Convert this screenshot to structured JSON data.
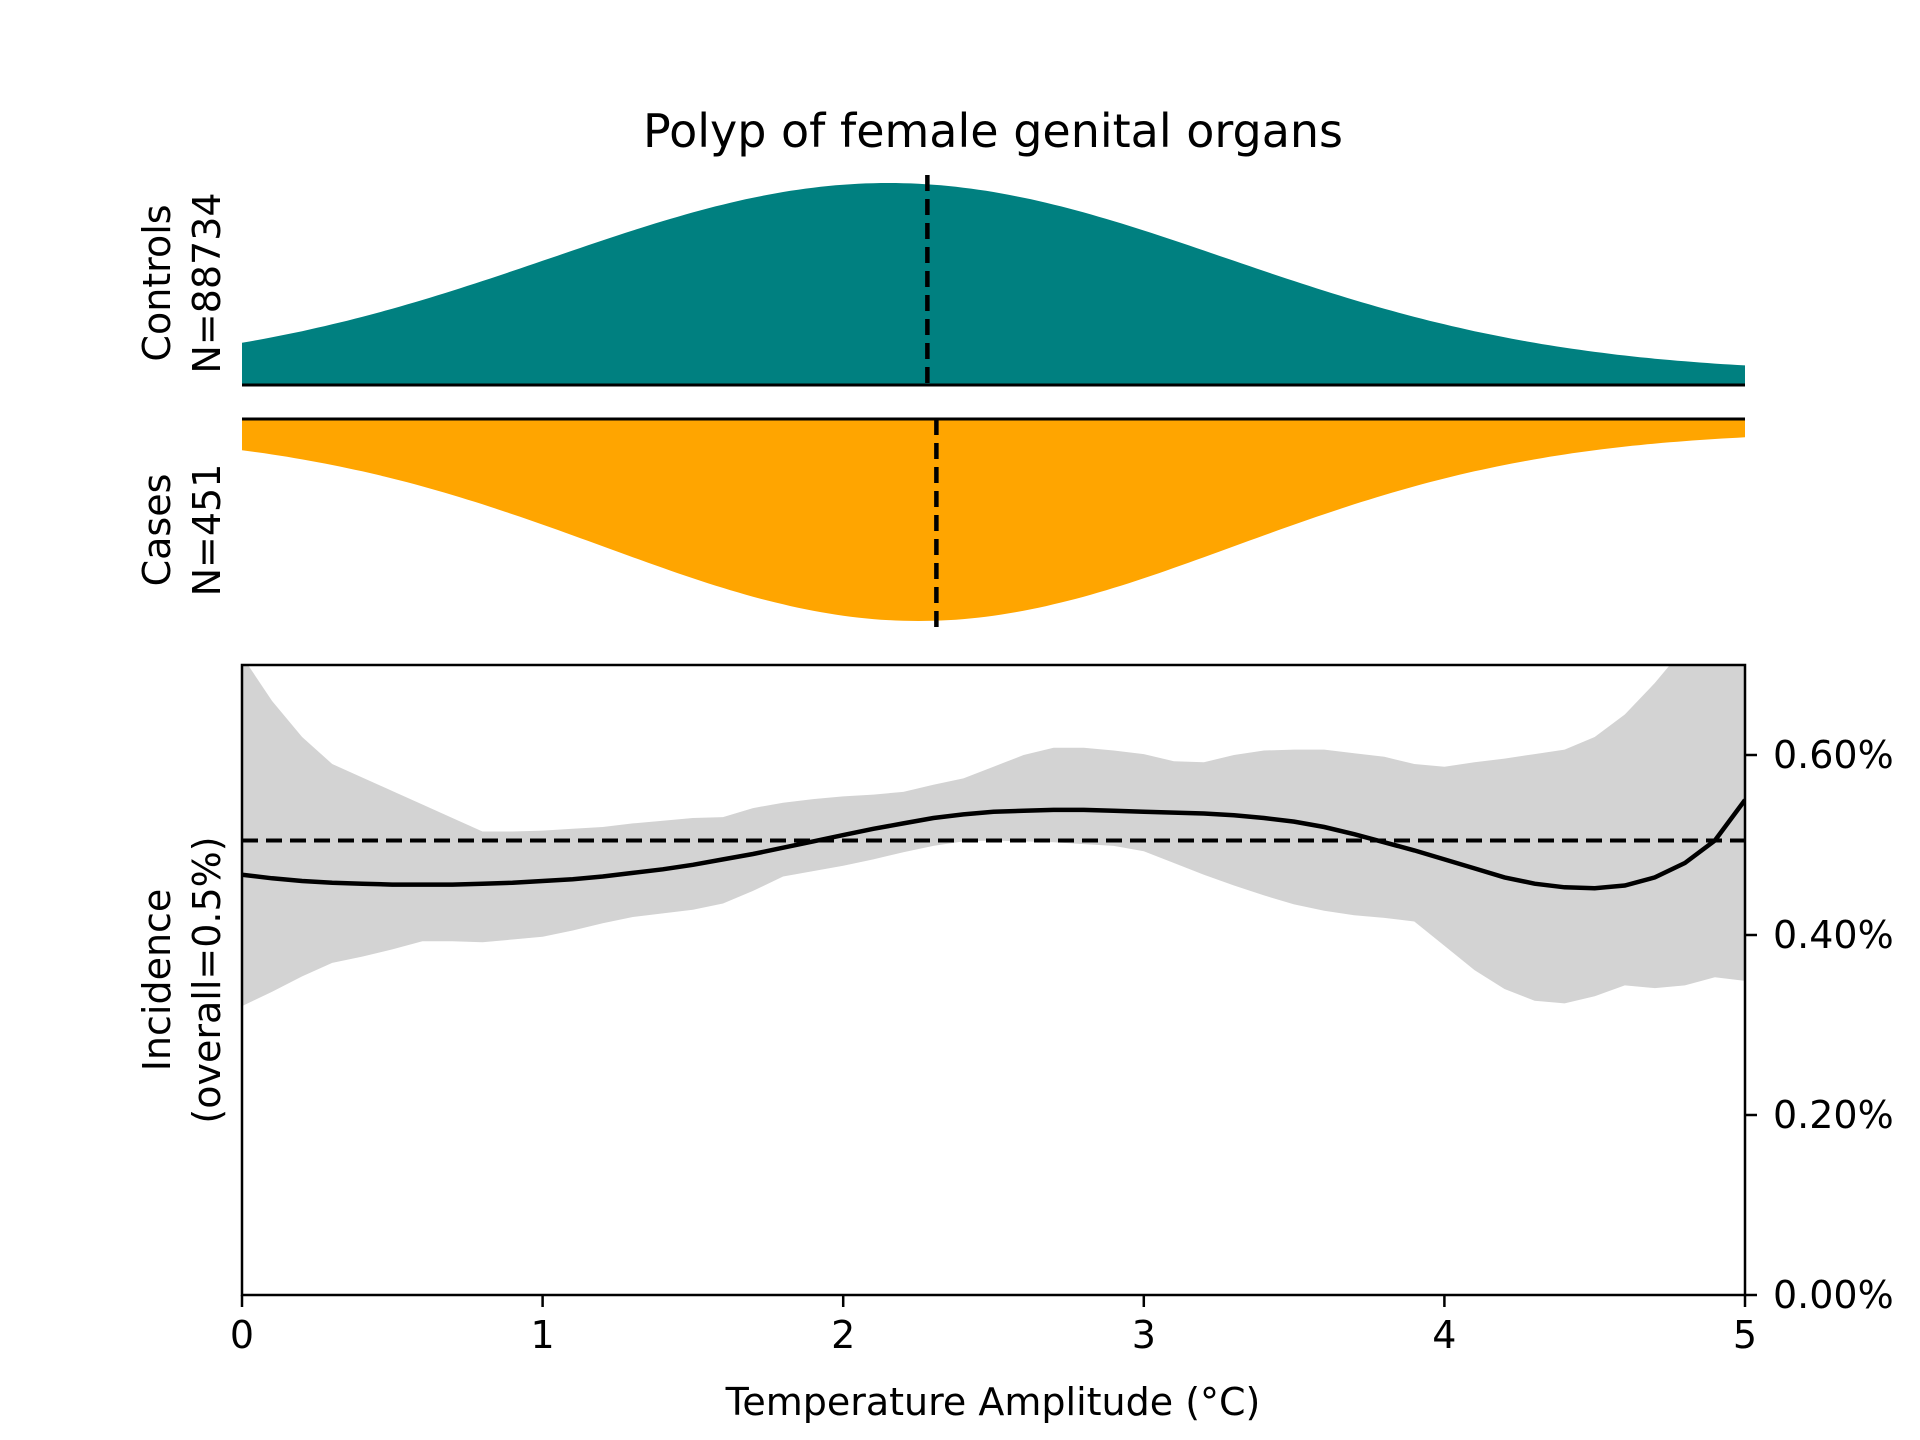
{
  "chart_data": {
    "type": "area",
    "title": "Polyp of female genital organs",
    "xlabel": "Temperature Amplitude (°C)",
    "xlim": [
      0,
      5
    ],
    "xticks": [
      "0",
      "1",
      "2",
      "3",
      "4",
      "5"
    ],
    "controls": {
      "label": "Controls",
      "n_label": "N=88734",
      "color": "#008080",
      "median": 2.28,
      "density_peak": 2.15,
      "density_sigma": 1.12,
      "density_tail": 0.06
    },
    "cases": {
      "label": "Cases",
      "n_label": "N=451",
      "color": "#FFA500",
      "median": 2.31,
      "density_peak": 2.25,
      "density_sigma": 1.05,
      "density_tail": 0.06
    },
    "incidence": {
      "ylabel_line1": "Incidence",
      "ylabel_line2": "(overall=0.5%)",
      "ylim": [
        0,
        0.7
      ],
      "yticks": [
        0,
        0.2,
        0.4,
        0.6
      ],
      "ytick_labels": [
        "0.00%",
        "0.20%",
        "0.40%",
        "0.60%"
      ],
      "overall": 0.505,
      "band_color": "#d3d3d3",
      "x": [
        0,
        0.1,
        0.2,
        0.3,
        0.4,
        0.5,
        0.6,
        0.7,
        0.8,
        0.9,
        1.0,
        1.1,
        1.2,
        1.3,
        1.4,
        1.5,
        1.6,
        1.7,
        1.8,
        1.9,
        2.0,
        2.1,
        2.2,
        2.3,
        2.4,
        2.5,
        2.6,
        2.7,
        2.8,
        2.9,
        3.0,
        3.1,
        3.2,
        3.3,
        3.4,
        3.5,
        3.6,
        3.7,
        3.8,
        3.9,
        4.0,
        4.1,
        4.2,
        4.3,
        4.4,
        4.5,
        4.6,
        4.7,
        4.8,
        4.9,
        5.0
      ],
      "y": [
        0.467,
        0.463,
        0.46,
        0.458,
        0.457,
        0.456,
        0.456,
        0.456,
        0.457,
        0.458,
        0.46,
        0.462,
        0.465,
        0.469,
        0.473,
        0.478,
        0.484,
        0.49,
        0.497,
        0.504,
        0.511,
        0.518,
        0.524,
        0.53,
        0.534,
        0.537,
        0.538,
        0.539,
        0.539,
        0.538,
        0.537,
        0.536,
        0.535,
        0.533,
        0.53,
        0.526,
        0.52,
        0.512,
        0.503,
        0.494,
        0.484,
        0.474,
        0.464,
        0.457,
        0.453,
        0.452,
        0.455,
        0.464,
        0.48,
        0.505,
        0.55
      ],
      "upper": [
        0.71,
        0.66,
        0.62,
        0.59,
        0.575,
        0.56,
        0.545,
        0.53,
        0.515,
        0.515,
        0.516,
        0.518,
        0.52,
        0.524,
        0.527,
        0.53,
        0.531,
        0.541,
        0.547,
        0.551,
        0.554,
        0.556,
        0.559,
        0.567,
        0.574,
        0.587,
        0.6,
        0.608,
        0.608,
        0.605,
        0.601,
        0.593,
        0.592,
        0.6,
        0.605,
        0.606,
        0.606,
        0.602,
        0.598,
        0.59,
        0.587,
        0.592,
        0.596,
        0.601,
        0.606,
        0.62,
        0.645,
        0.68,
        0.72,
        0.76,
        0.8
      ],
      "lower": [
        0.321,
        0.337,
        0.354,
        0.369,
        0.376,
        0.384,
        0.393,
        0.393,
        0.392,
        0.395,
        0.398,
        0.405,
        0.413,
        0.42,
        0.424,
        0.428,
        0.435,
        0.449,
        0.465,
        0.471,
        0.477,
        0.484,
        0.492,
        0.499,
        0.504,
        0.505,
        0.504,
        0.503,
        0.501,
        0.499,
        0.493,
        0.48,
        0.467,
        0.455,
        0.444,
        0.434,
        0.427,
        0.422,
        0.419,
        0.415,
        0.388,
        0.361,
        0.34,
        0.327,
        0.324,
        0.332,
        0.344,
        0.341,
        0.344,
        0.353,
        0.349
      ]
    }
  }
}
